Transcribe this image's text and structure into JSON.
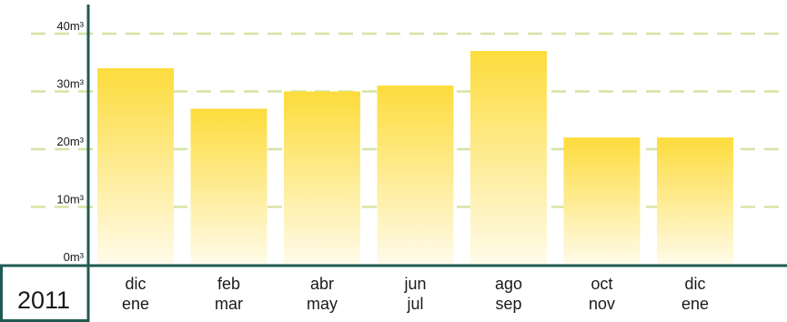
{
  "chart_data": {
    "type": "bar",
    "title": "",
    "xlabel": "",
    "ylabel": "",
    "year": "2011",
    "categories": [
      [
        "dic",
        "ene"
      ],
      [
        "feb",
        "mar"
      ],
      [
        "abr",
        "may"
      ],
      [
        "jun",
        "jul"
      ],
      [
        "ago",
        "sep"
      ],
      [
        "oct",
        "nov"
      ],
      [
        "dic",
        "ene"
      ]
    ],
    "values": [
      34,
      27,
      30,
      31,
      37,
      22,
      22
    ],
    "ylim": [
      0,
      40
    ],
    "yticks": [
      0,
      10,
      20,
      30,
      40
    ],
    "ytick_labels": [
      "0m³",
      "10m³",
      "20m³",
      "30m³",
      "40m³"
    ],
    "grid": true,
    "colors": {
      "bar_top": "#fddc3c",
      "bar_bottom": "#fffbea",
      "grid": "#d6e3a4",
      "axis": "#1f5a52"
    }
  }
}
